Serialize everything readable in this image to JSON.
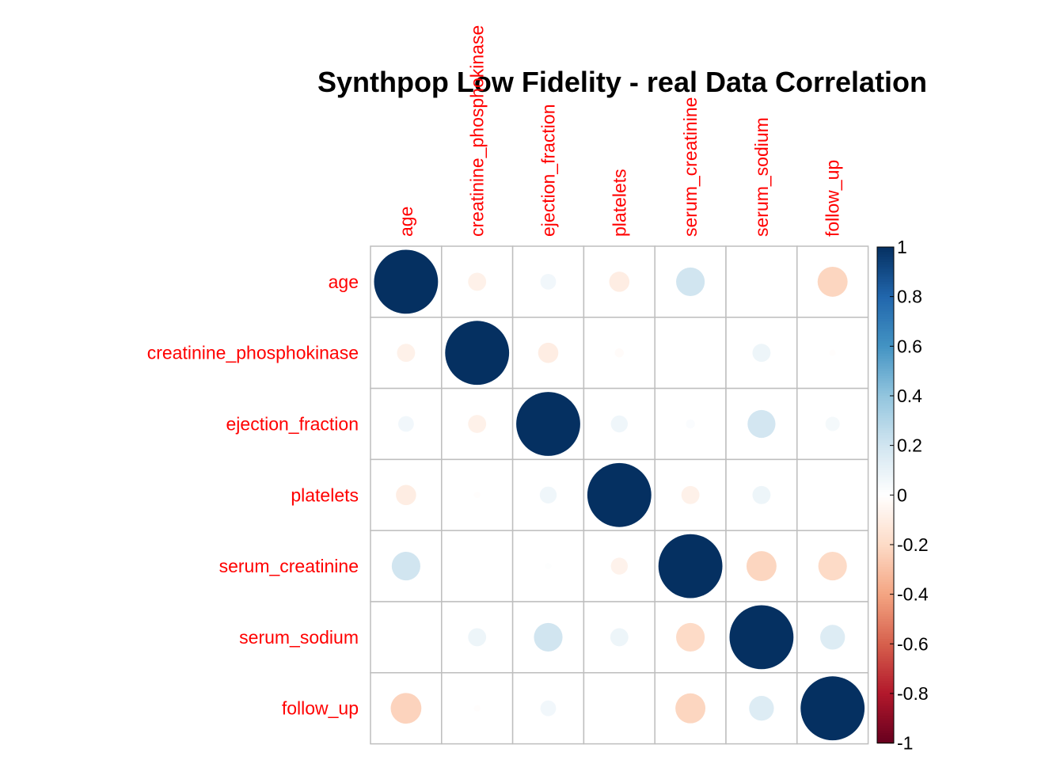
{
  "chart_data": {
    "type": "heatmap",
    "subtype": "correlation-circle-matrix",
    "title": "Synthpop Low Fidelity - real Data Correlation",
    "variables": [
      "age",
      "creatinine_phosphokinase",
      "ejection_fraction",
      "platelets",
      "serum_creatinine",
      "serum_sodium",
      "follow_up"
    ],
    "matrix": [
      [
        1.0,
        -0.08,
        0.06,
        -0.1,
        0.2,
        0.0,
        -0.22
      ],
      [
        -0.08,
        1.0,
        -0.1,
        -0.02,
        0.0,
        0.08,
        -0.01
      ],
      [
        0.06,
        -0.08,
        1.0,
        0.07,
        0.02,
        0.19,
        0.05
      ],
      [
        -0.1,
        -0.01,
        0.07,
        1.0,
        -0.08,
        0.08,
        0.0
      ],
      [
        0.2,
        0.0,
        0.01,
        -0.07,
        1.0,
        -0.22,
        -0.2
      ],
      [
        0.0,
        0.08,
        0.2,
        0.08,
        -0.2,
        1.0,
        0.15
      ],
      [
        -0.23,
        -0.01,
        0.06,
        0.0,
        -0.22,
        0.15,
        1.0
      ]
    ],
    "colorbar": {
      "ticks": [
        "1",
        "0.8",
        "0.6",
        "0.4",
        "0.2",
        "0",
        "-0.2",
        "-0.4",
        "-0.6",
        "-0.8",
        "-1"
      ],
      "range": [
        -1,
        1
      ]
    },
    "colors": {
      "positive_strong": "#053061",
      "positive_mid": "#4393c3",
      "neutral": "#f7f7f7",
      "negative_mid": "#d6604d",
      "negative_strong": "#67001f",
      "label": "#ff0000",
      "grid": "#bebebe"
    },
    "legend_position": "right"
  }
}
